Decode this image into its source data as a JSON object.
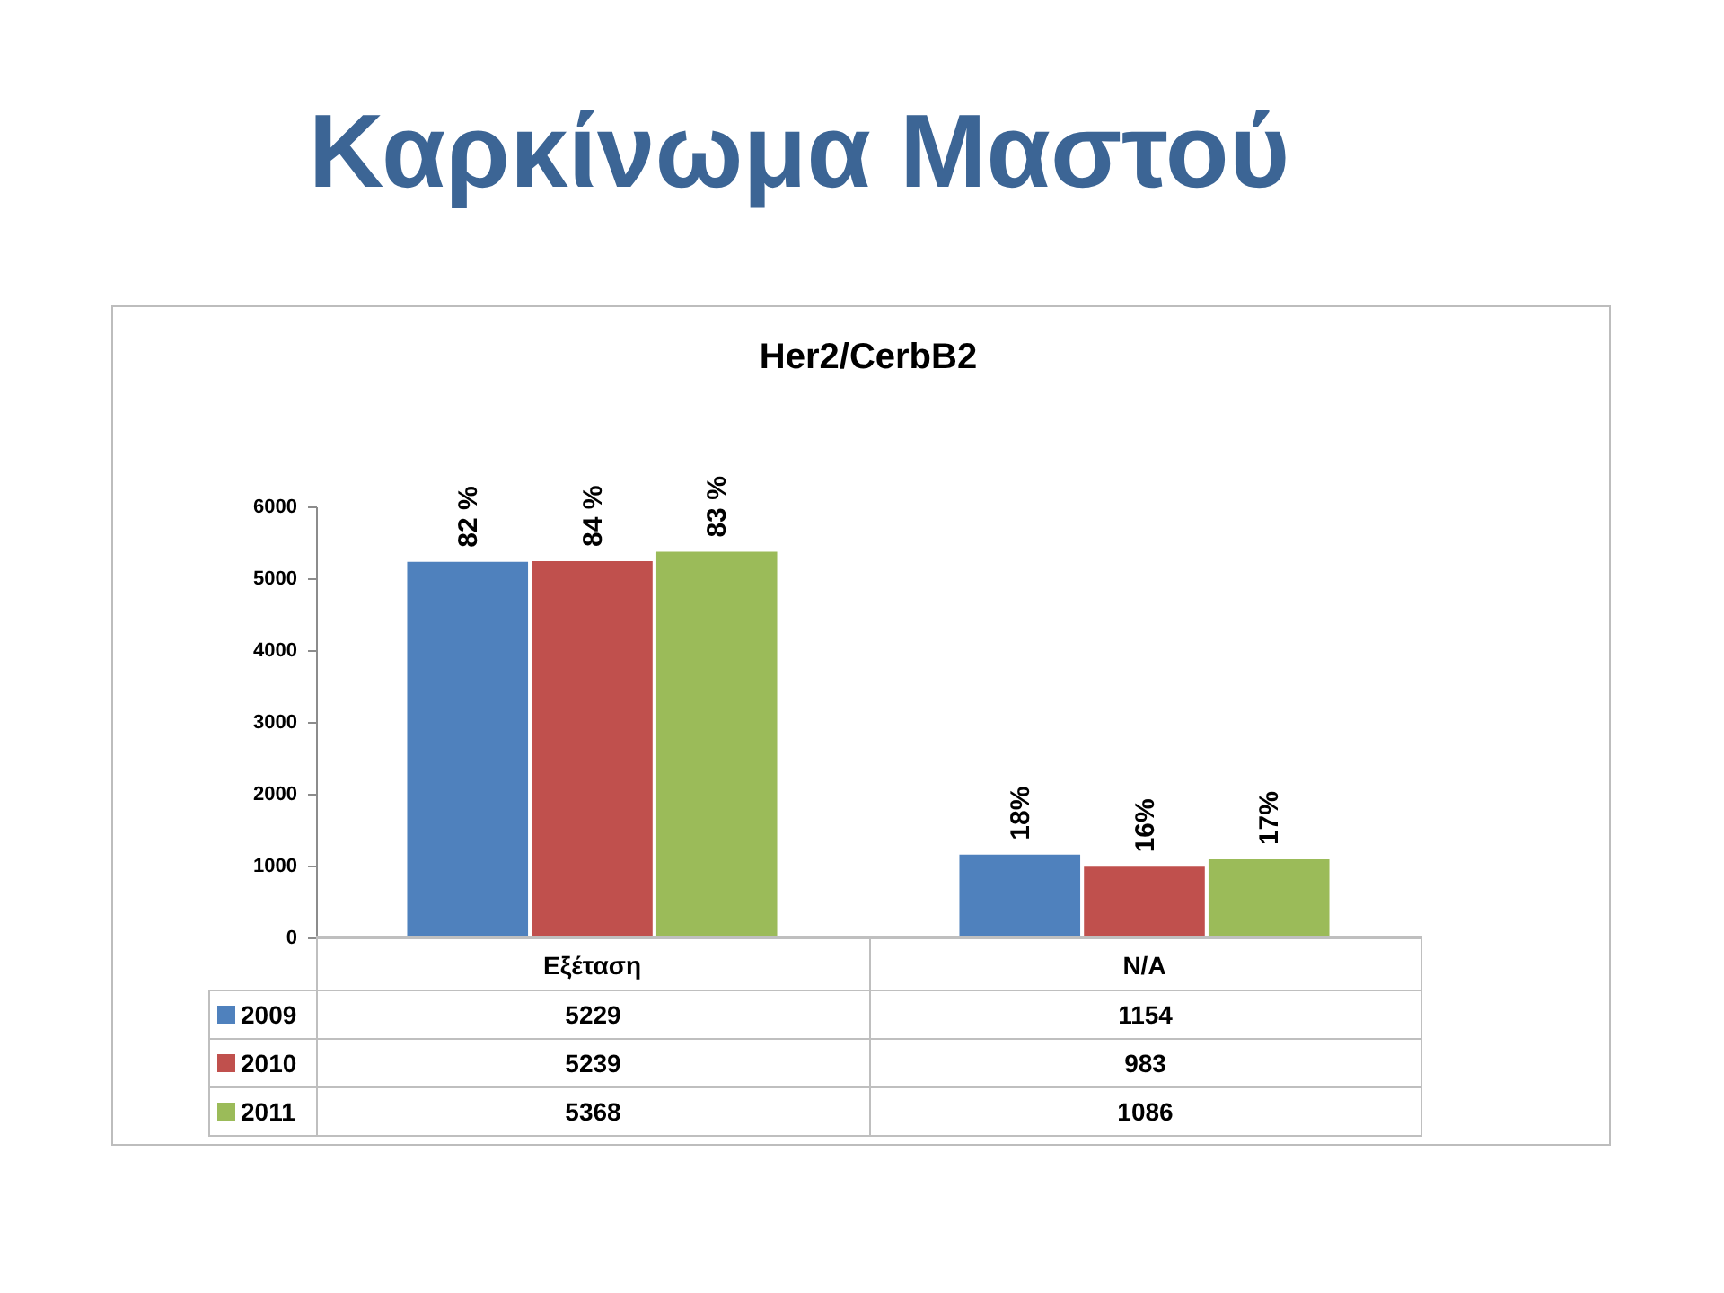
{
  "chart_data": {
    "type": "bar",
    "title": "Καρκίνωμα Μαστού",
    "subtitle": "Her2/CerbB2",
    "categories": [
      "Εξέταση",
      "N/A"
    ],
    "series": [
      {
        "name": "2009",
        "color": "#4f81bd",
        "values": [
          5229,
          1154
        ]
      },
      {
        "name": "2010",
        "color": "#c0504d",
        "values": [
          5239,
          983
        ]
      },
      {
        "name": "2011",
        "color": "#9bbb59",
        "values": [
          5368,
          1086
        ]
      }
    ],
    "annotations": [
      "82 %",
      "18%",
      "84 %",
      "16%",
      "83 %",
      "17%"
    ],
    "ylim": [
      0,
      6000
    ],
    "yticks": [
      0,
      1000,
      2000,
      3000,
      4000,
      5000,
      6000
    ],
    "grid": false,
    "legend": "bottom",
    "data_labels": true
  }
}
